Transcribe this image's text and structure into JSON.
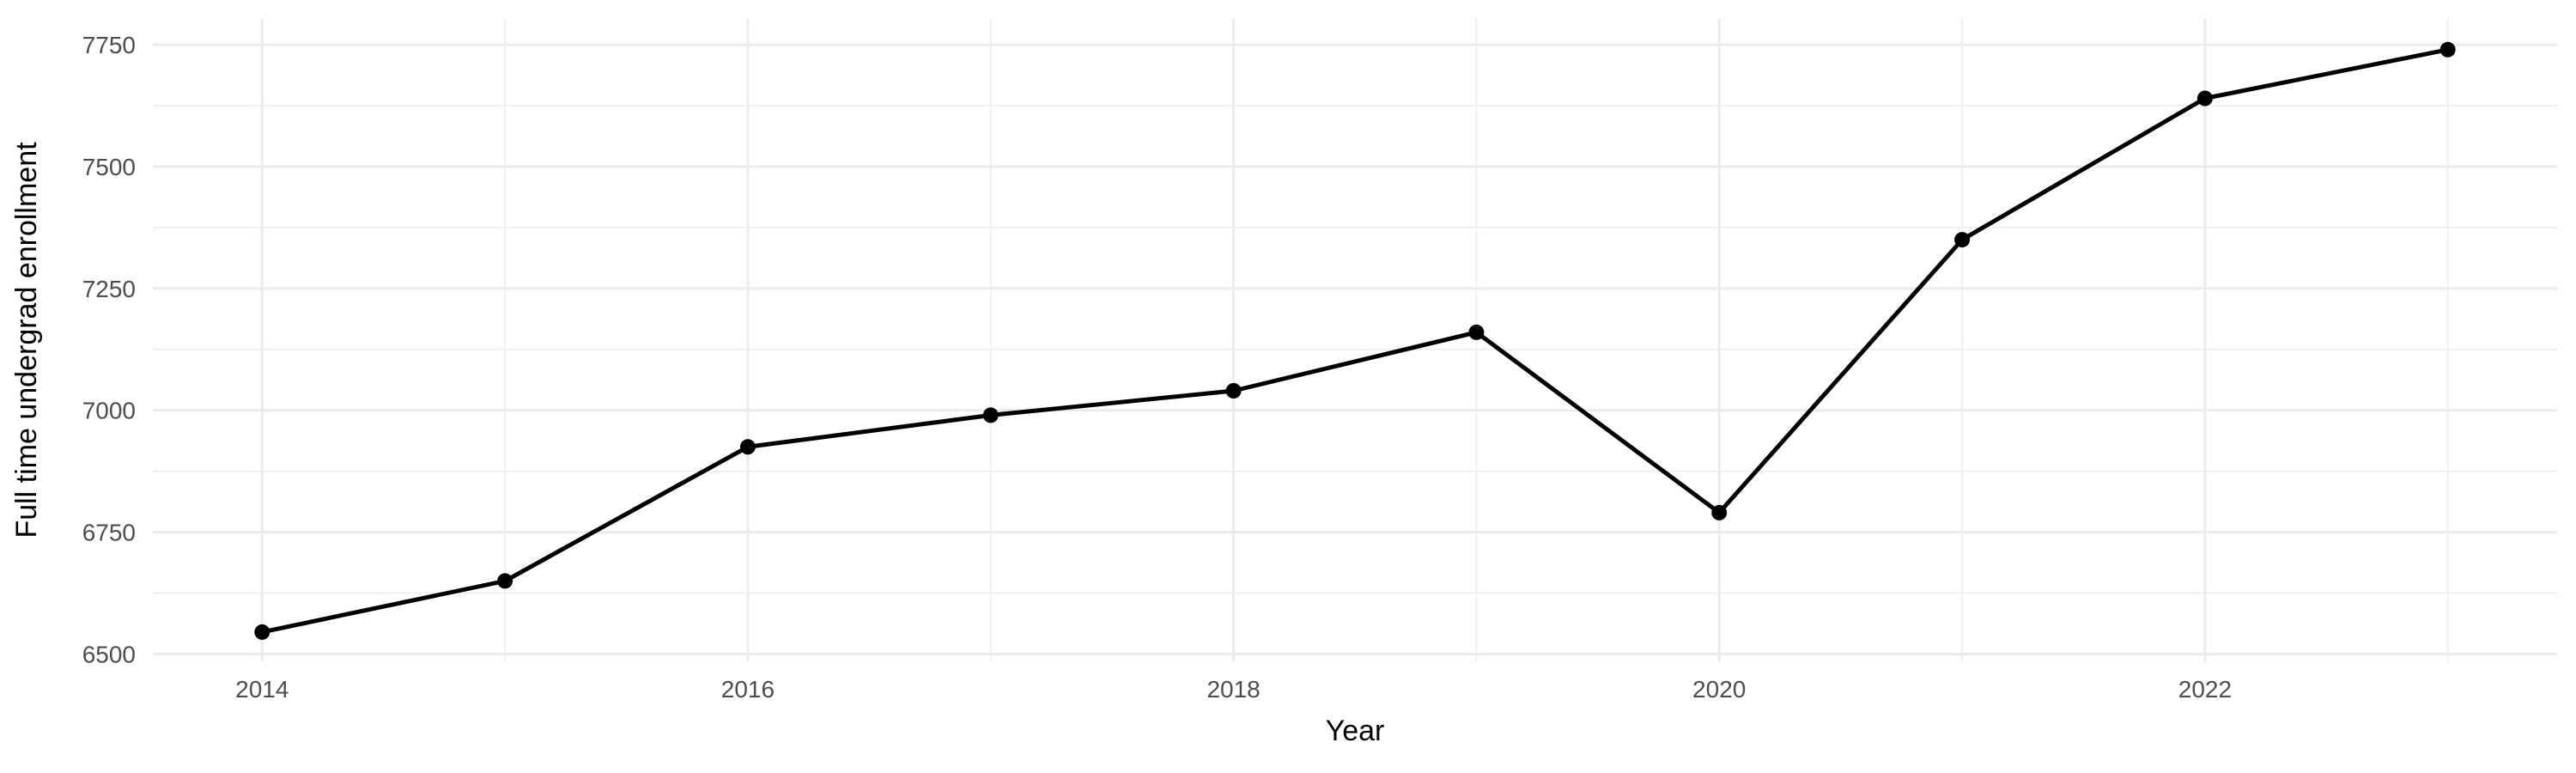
{
  "figure": {
    "background": "#FFFFFF"
  },
  "chart_data": {
    "type": "line",
    "title": "",
    "xlabel": "Year",
    "ylabel": "Full time undergrad enrollment",
    "x": [
      2014,
      2015,
      2016,
      2017,
      2018,
      2019,
      2020,
      2021,
      2022,
      2023
    ],
    "values": [
      6545,
      6650,
      6925,
      6990,
      7040,
      7160,
      6790,
      7350,
      7640,
      7740
    ],
    "x_ticks": [
      2014,
      2016,
      2018,
      2020,
      2022
    ],
    "x_minor_ticks": [
      2015,
      2017,
      2019,
      2021,
      2023
    ],
    "y_ticks": [
      6500,
      6750,
      7000,
      7250,
      7500,
      7750
    ],
    "y_minor_ticks": [
      6625,
      6875,
      7125,
      7375,
      7625
    ],
    "xlim": [
      2013.55,
      2023.45
    ],
    "ylim": [
      6485,
      7803
    ],
    "grid": true,
    "legend": "none",
    "style": {
      "line_color": "#000000",
      "point_color": "#000000",
      "grid_major_color": "#EBEBEB",
      "grid_minor_color": "#EDEDED",
      "tick_label_color": "#4D4D4D",
      "axis_title_color": "#000000",
      "background_color": "#FFFFFF"
    }
  }
}
